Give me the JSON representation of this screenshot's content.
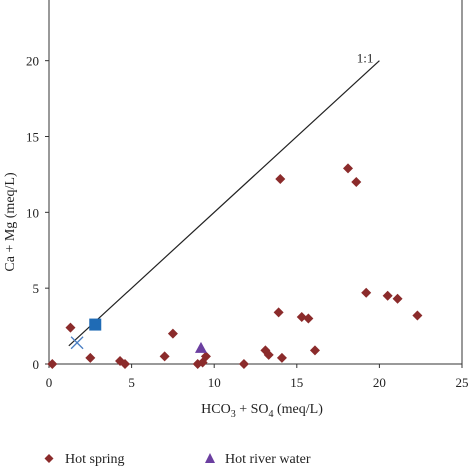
{
  "chart_data": {
    "type": "scatter",
    "xlabel": "HCO₃ + SO₄ (meq/L)",
    "xlabel_parts": {
      "a": "HCO",
      "a_sub": "3",
      "b": " + SO",
      "b_sub": "4",
      "c": " (meq/L)"
    },
    "ylabel": "Ca + Mg (meq/L)",
    "xlim": [
      0,
      25
    ],
    "ylim": [
      0,
      24
    ],
    "xticks": [
      0,
      5,
      10,
      15,
      20,
      25
    ],
    "yticks": [
      0,
      5,
      10,
      15,
      20
    ],
    "xtick_labels": [
      "0",
      "5",
      "10",
      "15",
      "20",
      "25"
    ],
    "ytick_labels": [
      "0",
      "5",
      "10",
      "15",
      "20"
    ],
    "grid": false,
    "legend_position": "bottom",
    "reference_line": {
      "label": "1:1",
      "x": [
        1.2,
        20
      ],
      "y": [
        1.2,
        20
      ]
    },
    "series": [
      {
        "name": "Hot spring",
        "marker": "diamond",
        "color": "#8b2b2b",
        "points": [
          [
            0.2,
            0.0
          ],
          [
            1.3,
            2.4
          ],
          [
            2.5,
            0.4
          ],
          [
            4.3,
            0.2
          ],
          [
            4.6,
            0.0
          ],
          [
            7.0,
            0.5
          ],
          [
            7.5,
            2.0
          ],
          [
            9.0,
            0.0
          ],
          [
            9.3,
            0.1
          ],
          [
            9.5,
            0.5
          ],
          [
            11.8,
            0.0
          ],
          [
            13.1,
            0.9
          ],
          [
            13.3,
            0.6
          ],
          [
            13.9,
            3.4
          ],
          [
            14.0,
            12.2
          ],
          [
            14.1,
            0.4
          ],
          [
            15.3,
            3.1
          ],
          [
            15.7,
            3.0
          ],
          [
            16.1,
            0.9
          ],
          [
            18.1,
            12.9
          ],
          [
            18.6,
            12.0
          ],
          [
            19.2,
            4.7
          ],
          [
            20.5,
            4.5
          ],
          [
            21.1,
            4.3
          ],
          [
            22.3,
            3.2
          ]
        ]
      },
      {
        "name": "Hot river water",
        "marker": "triangle",
        "color": "#6b3fa0",
        "points": [
          [
            9.2,
            1.0
          ]
        ]
      },
      {
        "name": "",
        "marker": "square",
        "color": "#1f6bb5",
        "points": [
          [
            2.8,
            2.6
          ]
        ]
      },
      {
        "name": "",
        "marker": "cross",
        "color": "#4a7ec2",
        "points": [
          [
            1.7,
            1.4
          ]
        ]
      }
    ]
  }
}
